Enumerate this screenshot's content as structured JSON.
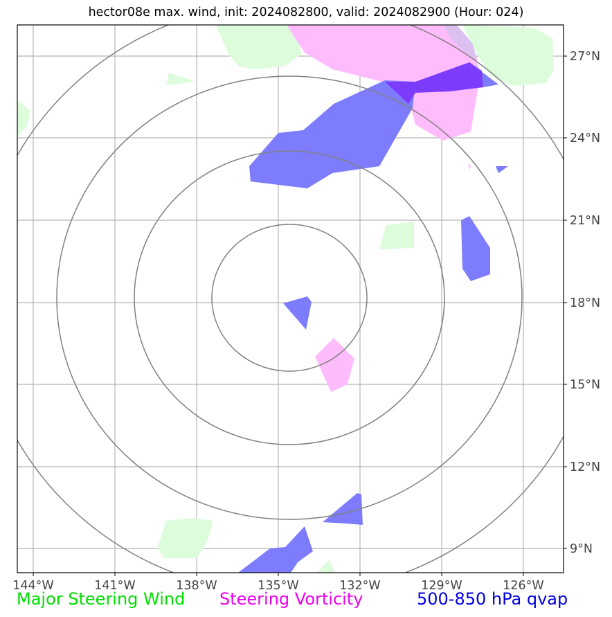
{
  "title": "hector08e max. wind, init: 2024082800, valid: 2024082900 (Hour: 024)",
  "map": {
    "lon_labels": [
      "144°W",
      "141°W",
      "138°W",
      "135°W",
      "132°W",
      "129°W",
      "126°W"
    ],
    "lat_labels": [
      "27°N",
      "24°N",
      "21°N",
      "18°N",
      "15°N",
      "12°N",
      "9°N"
    ],
    "colors": {
      "steering_wind": "#dcfcdc",
      "steering_vorticity": "#ffbcfc",
      "qvap": "#7c7cfc",
      "overlap": "#7c3cfc",
      "rings": "#808080",
      "grid": "#b4b4b4"
    }
  },
  "legend": {
    "wind": {
      "label": "Major Steering Wind",
      "color": "#00e000"
    },
    "vorticity": {
      "label": "Steering Vorticity",
      "color": "#ee00ee"
    },
    "qvap": {
      "label": "500-850 hPa qvap",
      "color": "#0000e0"
    }
  }
}
